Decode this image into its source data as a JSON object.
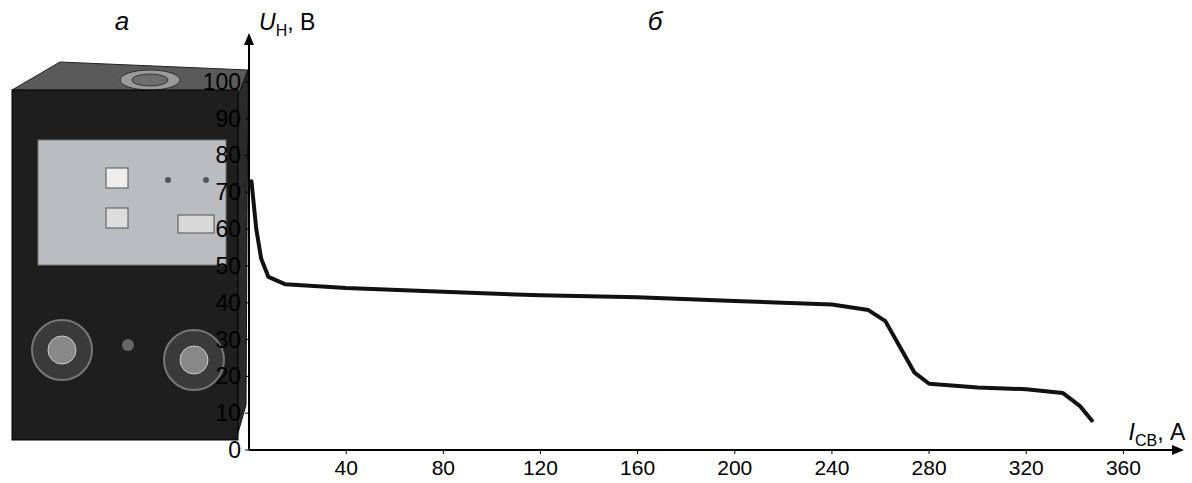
{
  "panel_labels": [
    "а",
    "б"
  ],
  "chart_data": {
    "type": "line",
    "color": "#111111",
    "x_label": {
      "main": "I",
      "sub": "СВ",
      "rest": ", А"
    },
    "y_label": {
      "main": "U",
      "sub": "Н",
      "rest": ", В"
    },
    "x": [
      1,
      3,
      5,
      8,
      15,
      40,
      80,
      120,
      160,
      200,
      240,
      255,
      262,
      268,
      274,
      280,
      300,
      320,
      335,
      342,
      347
    ],
    "y": [
      73,
      60,
      52,
      47,
      45,
      44,
      43,
      42,
      41.5,
      40.5,
      39.5,
      38,
      35,
      28,
      21,
      18,
      17,
      16.5,
      15.5,
      12,
      8
    ],
    "xlim": [
      0,
      380
    ],
    "ylim": [
      0,
      110
    ],
    "xticks": [
      40,
      80,
      120,
      160,
      200,
      240,
      280,
      320,
      360
    ],
    "yticks": [
      0,
      10,
      20,
      30,
      40,
      50,
      60,
      70,
      80,
      90,
      100
    ],
    "grid": false
  }
}
